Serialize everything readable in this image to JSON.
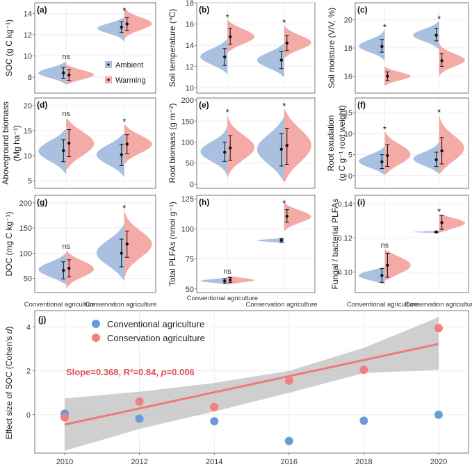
{
  "colors": {
    "ambient": "#a9c0e0",
    "warming": "#f4aaa6",
    "conv": "#6a9bd8",
    "cons": "#f08080",
    "trend": "#ef7a7a",
    "band": "#bfbfbf"
  },
  "violin_x_categories": [
    "Conventional agriculture",
    "Conservation agriculture"
  ],
  "violin_legend": {
    "ambient": "Ambient",
    "warming": "Warming"
  },
  "chart_data": [
    {
      "id": "a",
      "tag": "(a)",
      "type": "violin",
      "ylabel": "SOC (g C kg⁻¹)",
      "ylim": [
        6.5,
        15
      ],
      "yticks": [
        "8",
        "10",
        "12",
        "14"
      ],
      "yticks_v": [
        8,
        10,
        12,
        14
      ],
      "groups": [
        {
          "category": "Conventional agriculture",
          "sig": "ns",
          "ambient": {
            "mean": 8.4,
            "lo": 7.9,
            "hi": 8.9,
            "dmin": 7.3,
            "dmax": 9.5
          },
          "warming": {
            "mean": 8.2,
            "lo": 7.7,
            "hi": 8.7,
            "dmin": 7.3,
            "dmax": 9.2
          }
        },
        {
          "category": "Conservation agriculture",
          "sig": "*",
          "ambient": {
            "mean": 12.7,
            "lo": 12.2,
            "hi": 13.2,
            "dmin": 11.3,
            "dmax": 13.6
          },
          "warming": {
            "mean": 13.0,
            "lo": 12.4,
            "hi": 13.6,
            "dmin": 11.6,
            "dmax": 14.6
          }
        }
      ]
    },
    {
      "id": "b",
      "tag": "(b)",
      "type": "violin",
      "ylabel": "Soil temperature (°C)",
      "ylim": [
        9.5,
        18
      ],
      "yticks": [
        "10",
        "12",
        "14",
        "16",
        "18"
      ],
      "yticks_v": [
        10,
        12,
        14,
        16,
        18
      ],
      "groups": [
        {
          "category": "Conventional agriculture",
          "sig": "*",
          "ambient": {
            "mean": 12.9,
            "lo": 12.1,
            "hi": 13.7,
            "dmin": 11.3,
            "dmax": 14.6
          },
          "warming": {
            "mean": 14.8,
            "lo": 14.1,
            "hi": 15.6,
            "dmin": 13.3,
            "dmax": 16.4
          }
        },
        {
          "category": "Conservation agriculture",
          "sig": "*",
          "ambient": {
            "mean": 12.6,
            "lo": 11.8,
            "hi": 13.4,
            "dmin": 11.0,
            "dmax": 14.2
          },
          "warming": {
            "mean": 14.2,
            "lo": 13.5,
            "hi": 14.9,
            "dmin": 12.8,
            "dmax": 15.9
          }
        }
      ]
    },
    {
      "id": "c",
      "tag": "(c)",
      "type": "violin",
      "ylabel": "Soil moisture (V/V, %)",
      "ylim": [
        14.8,
        21.2
      ],
      "yticks": [
        "16",
        "18",
        "20"
      ],
      "yticks_v": [
        16,
        18,
        20
      ],
      "groups": [
        {
          "category": "Conventional agriculture",
          "sig": "*",
          "ambient": {
            "mean": 18.1,
            "lo": 17.7,
            "hi": 18.6,
            "dmin": 17.1,
            "dmax": 19.3
          },
          "warming": {
            "mean": 16.0,
            "lo": 15.7,
            "hi": 16.3,
            "dmin": 15.3,
            "dmax": 16.7
          }
        },
        {
          "category": "Conservation agriculture",
          "sig": "*",
          "ambient": {
            "mean": 18.9,
            "lo": 18.5,
            "hi": 19.4,
            "dmin": 17.9,
            "dmax": 19.9
          },
          "warming": {
            "mean": 17.1,
            "lo": 16.7,
            "hi": 17.6,
            "dmin": 16.0,
            "dmax": 18.4
          }
        }
      ]
    },
    {
      "id": "d",
      "tag": "(d)",
      "type": "violin",
      "ylabel": "Aboveground biomass",
      "ylabel2": "(Mg ha⁻¹)",
      "ylim": [
        3.5,
        21.5
      ],
      "yticks": [
        "5",
        "10",
        "15",
        "20"
      ],
      "yticks_v": [
        5,
        10,
        15,
        20
      ],
      "groups": [
        {
          "category": "Conventional agriculture",
          "sig": "ns",
          "ambient": {
            "mean": 11.0,
            "lo": 8.8,
            "hi": 13.2,
            "dmin": 6.3,
            "dmax": 15.4
          },
          "warming": {
            "mean": 12.5,
            "lo": 9.8,
            "hi": 15.2,
            "dmin": 7.2,
            "dmax": 17.5
          }
        },
        {
          "category": "Conservation agriculture",
          "sig": "*",
          "ambient": {
            "mean": 10.2,
            "lo": 8.0,
            "hi": 12.3,
            "dmin": 5.8,
            "dmax": 14.6
          },
          "warming": {
            "mean": 12.3,
            "lo": 10.4,
            "hi": 14.2,
            "dmin": 8.3,
            "dmax": 16.3
          }
        }
      ]
    },
    {
      "id": "e",
      "tag": "(e)",
      "type": "violin",
      "ylabel": "Root biomass (g m⁻²)",
      "ylim": [
        -10,
        205
      ],
      "yticks": [
        "0",
        "50",
        "100",
        "150",
        "200"
      ],
      "yticks_v": [
        0,
        50,
        100,
        150,
        200
      ],
      "groups": [
        {
          "category": "Conventional agriculture",
          "sig": "*",
          "ambient": {
            "mean": 76,
            "lo": 54,
            "hi": 100,
            "dmin": 20,
            "dmax": 140
          },
          "warming": {
            "mean": 86,
            "lo": 57,
            "hi": 115,
            "dmin": 15,
            "dmax": 165
          }
        },
        {
          "category": "Conservation agriculture",
          "sig": "*",
          "ambient": {
            "mean": 83,
            "lo": 43,
            "hi": 120,
            "dmin": 5,
            "dmax": 160
          },
          "warming": {
            "mean": 92,
            "lo": 47,
            "hi": 133,
            "dmin": 3,
            "dmax": 180
          }
        }
      ]
    },
    {
      "id": "f",
      "tag": "(f)",
      "type": "violin",
      "ylabel": "Root exudation",
      "ylabel2": "(g C g⁻¹ root weight)",
      "ylim": [
        -3,
        18.5
      ],
      "yticks": [
        "0",
        "5",
        "10",
        "15"
      ],
      "yticks_v": [
        0,
        5,
        10,
        15
      ],
      "groups": [
        {
          "category": "Conventional agriculture",
          "sig": "*",
          "ambient": {
            "mean": 3.3,
            "lo": 1.7,
            "hi": 5.0,
            "dmin": 0.2,
            "dmax": 7.0
          },
          "warming": {
            "mean": 4.8,
            "lo": 2.2,
            "hi": 7.4,
            "dmin": 0.2,
            "dmax": 10.5
          }
        },
        {
          "category": "Conservation agriculture",
          "sig": "*",
          "ambient": {
            "mean": 3.8,
            "lo": 2.2,
            "hi": 5.6,
            "dmin": 0.5,
            "dmax": 8.0
          },
          "warming": {
            "mean": 5.9,
            "lo": 2.8,
            "hi": 9.1,
            "dmin": 0.3,
            "dmax": 14.5
          }
        }
      ]
    },
    {
      "id": "g",
      "tag": "(g)",
      "type": "violin",
      "ylabel": "DOC (mg C kg⁻¹)",
      "ylim": [
        22,
        215
      ],
      "yticks": [
        "50",
        "100",
        "150",
        "200"
      ],
      "yticks_v": [
        50,
        100,
        150,
        200
      ],
      "groups": [
        {
          "category": "Conventional agriculture",
          "sig": "ns",
          "ambient": {
            "mean": 66,
            "lo": 49,
            "hi": 83,
            "dmin": 38,
            "dmax": 100
          },
          "warming": {
            "mean": 70,
            "lo": 53,
            "hi": 87,
            "dmin": 30,
            "dmax": 105
          }
        },
        {
          "category": "Conservation agriculture",
          "sig": "*",
          "ambient": {
            "mean": 100,
            "lo": 73,
            "hi": 128,
            "dmin": 45,
            "dmax": 158
          },
          "warming": {
            "mean": 118,
            "lo": 92,
            "hi": 144,
            "dmin": 50,
            "dmax": 185
          }
        }
      ]
    },
    {
      "id": "h",
      "tag": "(h)",
      "type": "violin",
      "ylabel": "Total PLFAs (nmol g⁻¹)",
      "ylim": [
        47,
        128
      ],
      "yticks": [
        "50",
        "75",
        "100",
        "125"
      ],
      "yticks_v": [
        50,
        75,
        100,
        125
      ],
      "groups": [
        {
          "category": "Conventional agriculture",
          "sig": "ns",
          "ambient": {
            "mean": 56.5,
            "lo": 54.5,
            "hi": 58.5,
            "dmin": 54.0,
            "dmax": 59.5
          },
          "warming": {
            "mean": 57.5,
            "lo": 55.5,
            "hi": 59.5,
            "dmin": 53.5,
            "dmax": 61.0
          }
        },
        {
          "category": "Conservation agriculture",
          "sig": "*",
          "ambient": {
            "mean": 90.5,
            "lo": 88.8,
            "hi": 92.0,
            "dmin": 88.3,
            "dmax": 92.3
          },
          "warming": {
            "mean": 110.5,
            "lo": 105.5,
            "hi": 116.0,
            "dmin": 98.0,
            "dmax": 122.0
          }
        }
      ]
    },
    {
      "id": "i",
      "tag": "(i)",
      "type": "violin",
      "ylabel": "Fungal / bacterial PLFAs",
      "ylim": [
        0.088,
        0.145
      ],
      "yticks": [
        "0.10",
        "0.12",
        "0.14"
      ],
      "yticks_v": [
        0.1,
        0.12,
        0.14
      ],
      "groups": [
        {
          "category": "Conventional agriculture",
          "sig": "ns",
          "ambient": {
            "mean": 0.098,
            "lo": 0.094,
            "hi": 0.102,
            "dmin": 0.093,
            "dmax": 0.103
          },
          "warming": {
            "mean": 0.104,
            "lo": 0.097,
            "hi": 0.111,
            "dmin": 0.095,
            "dmax": 0.113
          }
        },
        {
          "category": "Conservation agriculture",
          "sig": "*",
          "ambient": {
            "mean": 0.1235,
            "lo": 0.123,
            "hi": 0.124,
            "dmin": 0.1229,
            "dmax": 0.1241
          },
          "warming": {
            "mean": 0.129,
            "lo": 0.125,
            "hi": 0.133,
            "dmin": 0.123,
            "dmax": 0.134
          }
        }
      ]
    },
    {
      "id": "j",
      "tag": "(j)",
      "type": "scatter",
      "ylabel": "Effect size of SOC (Cohen's ",
      "ylabel_italic": "d",
      "ylabel_close": ")",
      "xlim": [
        2009.2,
        2020.8
      ],
      "ylim": [
        -1.75,
        4.75
      ],
      "xticks": [
        "2010",
        "2012",
        "2014",
        "2016",
        "2018",
        "2020"
      ],
      "xticks_v": [
        2010,
        2012,
        2014,
        2016,
        2018,
        2020
      ],
      "yticks": [
        "0",
        "2",
        "4"
      ],
      "yticks_v": [
        0,
        2,
        4
      ],
      "series": [
        {
          "name": "Conventional agriculture",
          "x": [
            2010,
            2012,
            2014,
            2016,
            2018,
            2020
          ],
          "y": [
            0.05,
            -0.18,
            -0.3,
            -1.2,
            -0.27,
            0.0
          ]
        },
        {
          "name": "Conservation agriculture",
          "x": [
            2010,
            2012,
            2014,
            2016,
            2018,
            2020
          ],
          "y": [
            -0.12,
            0.6,
            0.35,
            1.55,
            2.05,
            3.95
          ]
        }
      ],
      "trend": {
        "slope": 0.368,
        "x0": 2010,
        "y0": -0.45,
        "x1": 2020,
        "y1": 3.23,
        "band_upper": [
          0.75,
          1.05,
          1.45,
          2.0,
          3.05,
          4.45
        ],
        "band_lower": [
          -1.65,
          -0.65,
          0.15,
          1.0,
          1.9,
          2.05
        ],
        "band_x": [
          2010,
          2012,
          2014,
          2016,
          2018,
          2020
        ]
      },
      "annotation": {
        "part1": "Slope=0.368, R²=0.84, ",
        "p_italic": "p",
        "part2": "=0.006"
      }
    }
  ]
}
